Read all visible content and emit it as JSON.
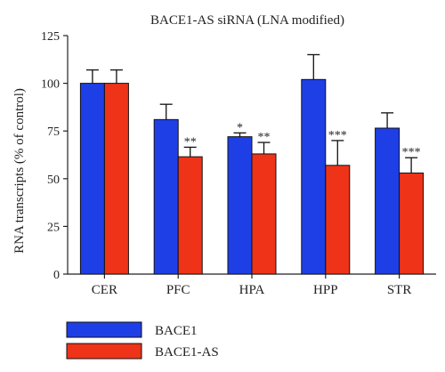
{
  "chart_data": {
    "type": "bar",
    "title": "BACE1-AS siRNA (LNA modified)",
    "xlabel": "",
    "ylabel": "RNA transcripts (% of control)",
    "ylim": [
      0,
      125
    ],
    "yticks": [
      0,
      25,
      50,
      75,
      100,
      125
    ],
    "categories": [
      "CER",
      "PFC",
      "HPA",
      "HPP",
      "STR"
    ],
    "series": [
      {
        "name": "BACE1",
        "color": "#1f3fe6",
        "values": [
          100,
          81,
          72,
          102,
          76.5
        ],
        "error": [
          7,
          8,
          2,
          13,
          8
        ],
        "significance": [
          "",
          "",
          "*",
          "",
          ""
        ]
      },
      {
        "name": "BACE1-AS",
        "color": "#ee3319",
        "values": [
          100,
          61.5,
          63,
          57,
          53
        ],
        "error": [
          7,
          5,
          6,
          13,
          8
        ],
        "significance": [
          "",
          "**",
          "**",
          "***",
          "***"
        ]
      }
    ],
    "grid": false,
    "legend_position": "bottom-left"
  }
}
